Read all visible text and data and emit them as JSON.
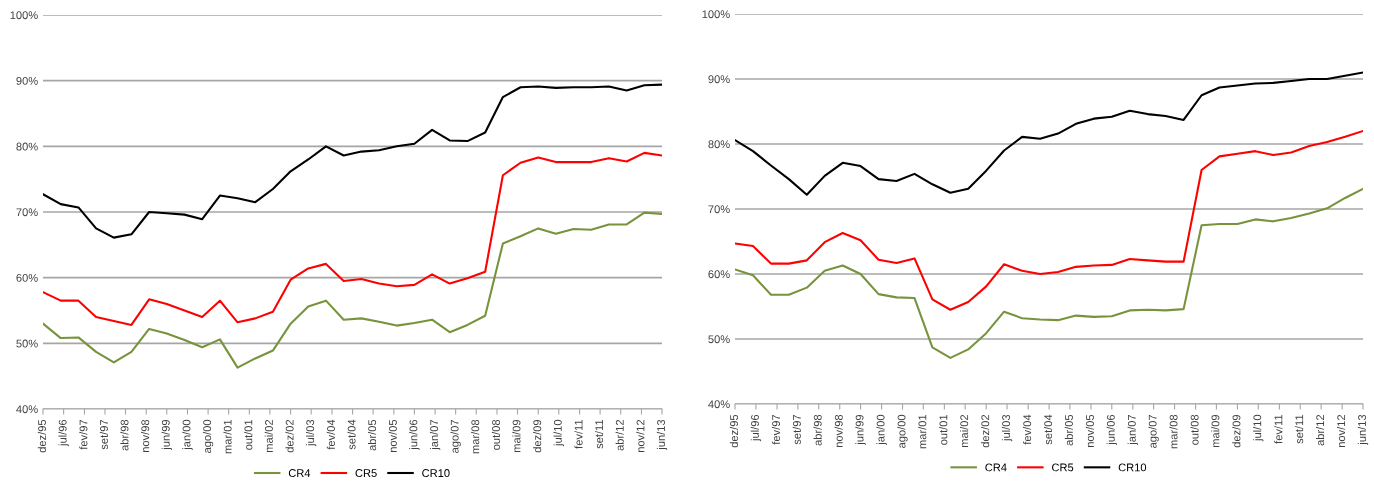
{
  "chart_data": [
    {
      "type": "line",
      "x": [
        "1995-12",
        "1996-06",
        "1996-12",
        "1997-06",
        "1997-12",
        "1998-06",
        "1998-12",
        "1999-06",
        "1999-12",
        "2000-06",
        "2000-12",
        "2001-06",
        "2001-12",
        "2002-06",
        "2002-12",
        "2003-06",
        "2003-12",
        "2004-06",
        "2004-12",
        "2005-06",
        "2005-12",
        "2006-06",
        "2006-12",
        "2007-06",
        "2007-12",
        "2008-06",
        "2008-12",
        "2009-06",
        "2009-12",
        "2010-06",
        "2010-12",
        "2011-06",
        "2011-12",
        "2012-06",
        "2012-12",
        "2013-06"
      ],
      "series": [
        {
          "name": "CR4",
          "color": "#77933c",
          "values": [
            53.0,
            50.8,
            50.9,
            48.7,
            47.1,
            48.7,
            52.2,
            51.5,
            50.5,
            49.4,
            50.6,
            46.3,
            47.7,
            48.9,
            53.0,
            55.6,
            56.5,
            53.6,
            53.8,
            53.3,
            52.7,
            53.1,
            53.6,
            51.7,
            52.8,
            54.2,
            65.2,
            66.3,
            67.5,
            66.7,
            67.4,
            67.3,
            68.1,
            68.1,
            69.9,
            69.7
          ]
        },
        {
          "name": "CR5",
          "color": "#ff0000",
          "values": [
            57.8,
            56.5,
            56.5,
            54.0,
            53.4,
            52.8,
            56.7,
            56.0,
            55.0,
            54.0,
            56.5,
            53.2,
            53.8,
            54.8,
            59.7,
            61.4,
            62.1,
            59.5,
            59.8,
            59.1,
            58.7,
            58.9,
            60.5,
            59.1,
            59.9,
            60.9,
            75.6,
            77.5,
            78.3,
            77.6,
            77.6,
            77.6,
            78.2,
            77.7,
            79.0,
            78.6
          ]
        },
        {
          "name": "CR10",
          "color": "#000000",
          "values": [
            72.7,
            71.2,
            70.7,
            67.5,
            66.1,
            66.6,
            70.0,
            69.8,
            69.6,
            68.9,
            72.5,
            72.1,
            71.5,
            73.5,
            76.2,
            78.0,
            80.0,
            78.6,
            79.2,
            79.4,
            80.0,
            80.4,
            82.5,
            80.9,
            80.8,
            82.1,
            87.5,
            89.0,
            89.1,
            88.9,
            89.0,
            89.0,
            89.1,
            88.5,
            89.3,
            89.4
          ]
        }
      ],
      "xlim": [
        "1995-12",
        "2013-06"
      ],
      "xticks": [
        {
          "value": "1995-12",
          "label": "dez/95"
        },
        {
          "value": "1996-07",
          "label": "jul/96"
        },
        {
          "value": "1997-02",
          "label": "fev/97"
        },
        {
          "value": "1997-09",
          "label": "set/97"
        },
        {
          "value": "1998-04",
          "label": "abr/98"
        },
        {
          "value": "1998-11",
          "label": "nov/98"
        },
        {
          "value": "1999-06",
          "label": "jun/99"
        },
        {
          "value": "2000-01",
          "label": "jan/00"
        },
        {
          "value": "2000-08",
          "label": "ago/00"
        },
        {
          "value": "2001-03",
          "label": "mar/01"
        },
        {
          "value": "2001-10",
          "label": "out/01"
        },
        {
          "value": "2002-05",
          "label": "mai/02"
        },
        {
          "value": "2002-12",
          "label": "dez/02"
        },
        {
          "value": "2003-07",
          "label": "jul/03"
        },
        {
          "value": "2004-02",
          "label": "fev/04"
        },
        {
          "value": "2004-09",
          "label": "set/04"
        },
        {
          "value": "2005-04",
          "label": "abr/05"
        },
        {
          "value": "2005-11",
          "label": "nov/05"
        },
        {
          "value": "2006-06",
          "label": "jun/06"
        },
        {
          "value": "2007-01",
          "label": "jan/07"
        },
        {
          "value": "2007-08",
          "label": "ago/07"
        },
        {
          "value": "2008-03",
          "label": "mar/08"
        },
        {
          "value": "2008-10",
          "label": "out/08"
        },
        {
          "value": "2009-05",
          "label": "mai/09"
        },
        {
          "value": "2009-12",
          "label": "dez/09"
        },
        {
          "value": "2010-07",
          "label": "jul/10"
        },
        {
          "value": "2011-02",
          "label": "fev/11"
        },
        {
          "value": "2011-09",
          "label": "set/11"
        },
        {
          "value": "2012-04",
          "label": "abr/12"
        },
        {
          "value": "2012-11",
          "label": "nov/12"
        },
        {
          "value": "2013-06",
          "label": "jun/13"
        }
      ],
      "ylim": [
        40,
        100
      ],
      "yticks": [
        {
          "value": 40,
          "label": "40%"
        },
        {
          "value": 50,
          "label": "50%"
        },
        {
          "value": 60,
          "label": "60%"
        },
        {
          "value": 70,
          "label": "70%"
        },
        {
          "value": 80,
          "label": "80%"
        },
        {
          "value": 90,
          "label": "90%"
        },
        {
          "value": 100,
          "label": "100%"
        }
      ],
      "grid": "y",
      "legend": "bottom",
      "marker": "none",
      "line_style": "solid"
    },
    {
      "type": "line",
      "x": [
        "1995-12",
        "1996-06",
        "1996-12",
        "1997-06",
        "1997-12",
        "1998-06",
        "1998-12",
        "1999-06",
        "1999-12",
        "2000-06",
        "2000-12",
        "2001-06",
        "2001-12",
        "2002-06",
        "2002-12",
        "2003-06",
        "2003-12",
        "2004-06",
        "2004-12",
        "2005-06",
        "2005-12",
        "2006-06",
        "2006-12",
        "2007-06",
        "2007-12",
        "2008-06",
        "2008-12",
        "2009-06",
        "2009-12",
        "2010-06",
        "2010-12",
        "2011-06",
        "2011-12",
        "2012-06",
        "2012-12",
        "2013-06"
      ],
      "series": [
        {
          "name": "CR4",
          "color": "#77933c",
          "values": [
            60.7,
            59.8,
            56.8,
            56.8,
            57.9,
            60.5,
            61.3,
            60.0,
            56.9,
            56.4,
            56.3,
            48.7,
            47.1,
            48.4,
            50.9,
            54.2,
            53.2,
            53.0,
            52.9,
            53.6,
            53.4,
            53.5,
            54.4,
            54.5,
            54.4,
            54.6,
            67.5,
            67.7,
            67.7,
            68.4,
            68.1,
            68.6,
            69.3,
            70.1,
            71.7,
            73.1
          ]
        },
        {
          "name": "CR5",
          "color": "#ff0000",
          "values": [
            64.7,
            64.3,
            61.6,
            61.6,
            62.1,
            64.9,
            66.3,
            65.2,
            62.2,
            61.7,
            62.4,
            56.1,
            54.5,
            55.7,
            58.1,
            61.5,
            60.5,
            60.0,
            60.3,
            61.1,
            61.3,
            61.4,
            62.3,
            62.1,
            61.9,
            61.9,
            76.0,
            78.1,
            78.5,
            78.9,
            78.3,
            78.7,
            79.7,
            80.3,
            81.1,
            82.0
          ]
        },
        {
          "name": "CR10",
          "color": "#000000",
          "values": [
            80.6,
            78.9,
            76.7,
            74.6,
            72.2,
            75.1,
            77.1,
            76.6,
            74.6,
            74.3,
            75.4,
            73.8,
            72.5,
            73.1,
            75.9,
            79.0,
            81.1,
            80.8,
            81.6,
            83.1,
            83.9,
            84.2,
            85.1,
            84.6,
            84.3,
            83.7,
            87.5,
            88.7,
            89.0,
            89.3,
            89.4,
            89.7,
            90.0,
            90.0,
            90.5,
            91.0
          ]
        }
      ],
      "xlim": [
        "1995-12",
        "2013-06"
      ],
      "xticks": [
        {
          "value": "1995-12",
          "label": "dez/95"
        },
        {
          "value": "1996-07",
          "label": "jul/96"
        },
        {
          "value": "1997-02",
          "label": "fev/97"
        },
        {
          "value": "1997-09",
          "label": "set/97"
        },
        {
          "value": "1998-04",
          "label": "abr/98"
        },
        {
          "value": "1998-11",
          "label": "nov/98"
        },
        {
          "value": "1999-06",
          "label": "jun/99"
        },
        {
          "value": "2000-01",
          "label": "jan/00"
        },
        {
          "value": "2000-08",
          "label": "ago/00"
        },
        {
          "value": "2001-03",
          "label": "mar/01"
        },
        {
          "value": "2001-10",
          "label": "out/01"
        },
        {
          "value": "2002-05",
          "label": "mai/02"
        },
        {
          "value": "2002-12",
          "label": "dez/02"
        },
        {
          "value": "2003-07",
          "label": "jul/03"
        },
        {
          "value": "2004-02",
          "label": "fev/04"
        },
        {
          "value": "2004-09",
          "label": "set/04"
        },
        {
          "value": "2005-04",
          "label": "abr/05"
        },
        {
          "value": "2005-11",
          "label": "nov/05"
        },
        {
          "value": "2006-06",
          "label": "jun/06"
        },
        {
          "value": "2007-01",
          "label": "jan/07"
        },
        {
          "value": "2007-08",
          "label": "ago/07"
        },
        {
          "value": "2008-03",
          "label": "mar/08"
        },
        {
          "value": "2008-10",
          "label": "out/08"
        },
        {
          "value": "2009-05",
          "label": "mai/09"
        },
        {
          "value": "2009-12",
          "label": "dez/09"
        },
        {
          "value": "2010-07",
          "label": "jul/10"
        },
        {
          "value": "2011-02",
          "label": "fev/11"
        },
        {
          "value": "2011-09",
          "label": "set/11"
        },
        {
          "value": "2012-04",
          "label": "abr/12"
        },
        {
          "value": "2012-11",
          "label": "nov/12"
        },
        {
          "value": "2013-06",
          "label": "jun/13"
        }
      ],
      "ylim": [
        40,
        100
      ],
      "yticks": [
        {
          "value": 40,
          "label": "40%"
        },
        {
          "value": 50,
          "label": "50%"
        },
        {
          "value": 60,
          "label": "60%"
        },
        {
          "value": 70,
          "label": "70%"
        },
        {
          "value": 80,
          "label": "80%"
        },
        {
          "value": 90,
          "label": "90%"
        },
        {
          "value": 100,
          "label": "100%"
        }
      ],
      "grid": "y",
      "legend": "bottom",
      "marker": "none",
      "line_style": "solid"
    }
  ]
}
